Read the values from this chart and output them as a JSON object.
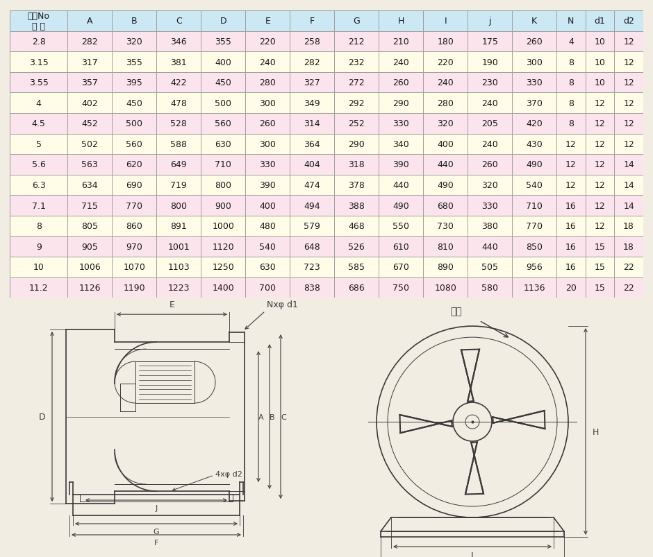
{
  "header": [
    "机号No\n尺 寸",
    "A",
    "B",
    "C",
    "D",
    "E",
    "F",
    "G",
    "H",
    "I",
    "j",
    "K",
    "N",
    "d1",
    "d2"
  ],
  "rows": [
    [
      "2.8",
      282,
      320,
      346,
      355,
      220,
      258,
      212,
      210,
      180,
      175,
      260,
      4,
      10,
      12
    ],
    [
      "3.15",
      317,
      355,
      381,
      400,
      240,
      282,
      232,
      240,
      220,
      190,
      300,
      8,
      10,
      12
    ],
    [
      "3.55",
      357,
      395,
      422,
      450,
      280,
      327,
      272,
      260,
      240,
      230,
      330,
      8,
      10,
      12
    ],
    [
      "4",
      402,
      450,
      478,
      500,
      300,
      349,
      292,
      290,
      280,
      240,
      370,
      8,
      12,
      12
    ],
    [
      "4.5",
      452,
      500,
      528,
      560,
      260,
      314,
      252,
      330,
      320,
      205,
      420,
      8,
      12,
      12
    ],
    [
      "5",
      502,
      560,
      588,
      630,
      300,
      364,
      290,
      340,
      400,
      240,
      430,
      12,
      12,
      12
    ],
    [
      "5.6",
      563,
      620,
      649,
      710,
      330,
      404,
      318,
      390,
      440,
      260,
      490,
      12,
      12,
      14
    ],
    [
      "6.3",
      634,
      690,
      719,
      800,
      390,
      474,
      378,
      440,
      490,
      320,
      540,
      12,
      12,
      14
    ],
    [
      "7.1",
      715,
      770,
      800,
      900,
      400,
      494,
      388,
      490,
      680,
      330,
      710,
      16,
      12,
      14
    ],
    [
      "8",
      805,
      860,
      891,
      1000,
      480,
      579,
      468,
      550,
      730,
      380,
      770,
      16,
      12,
      18
    ],
    [
      "9",
      905,
      970,
      1001,
      1120,
      540,
      648,
      526,
      610,
      810,
      440,
      850,
      16,
      15,
      18
    ],
    [
      "10",
      1006,
      1070,
      1103,
      1250,
      630,
      723,
      585,
      670,
      890,
      505,
      956,
      16,
      15,
      22
    ],
    [
      "11.2",
      1126,
      1190,
      1223,
      1400,
      700,
      838,
      686,
      750,
      1080,
      580,
      1136,
      20,
      15,
      22
    ]
  ],
  "header_bg": "#cce8f4",
  "row_bg_odd": "#fce4ec",
  "row_bg_even": "#fffde7",
  "border_color": "#999999",
  "text_color": "#1a1a1a",
  "diagram_bg": "#f2ede3",
  "line_color": "#3a3a3a"
}
